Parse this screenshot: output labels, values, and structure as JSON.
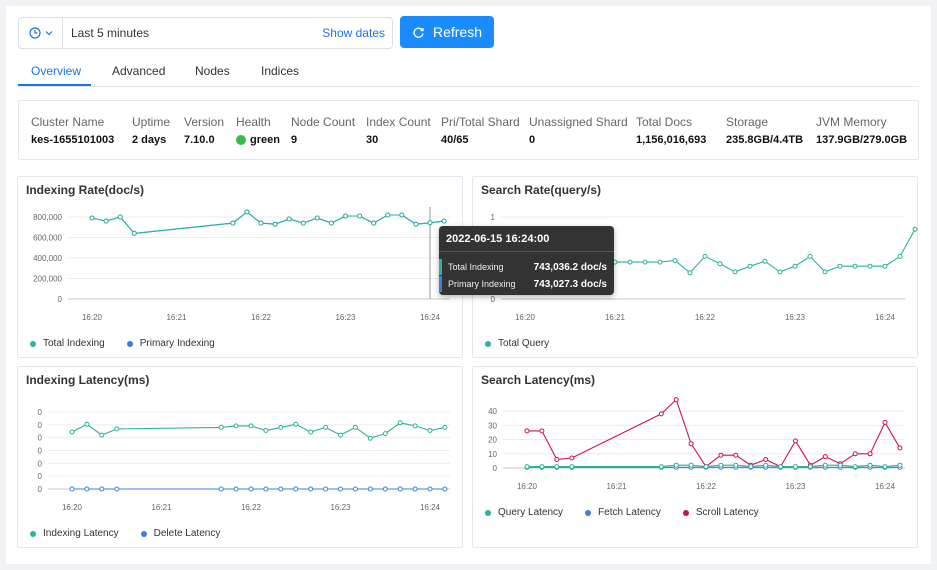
{
  "toolbar": {
    "range_label": "Last 5 minutes",
    "show_dates_label": "Show dates",
    "refresh_label": "Refresh"
  },
  "tabs": [
    {
      "label": "Overview",
      "active": true
    },
    {
      "label": "Advanced",
      "active": false
    },
    {
      "label": "Nodes",
      "active": false
    },
    {
      "label": "Indices",
      "active": false
    }
  ],
  "summary": [
    {
      "label": "Cluster Name",
      "value": "kes-1655101003"
    },
    {
      "label": "Uptime",
      "value": "2 days"
    },
    {
      "label": "Version",
      "value": "7.10.0"
    },
    {
      "label": "Health",
      "value": "green"
    },
    {
      "label": "Node Count",
      "value": "9"
    },
    {
      "label": "Index Count",
      "value": "30"
    },
    {
      "label": "Pri/Total Shard",
      "value": "40/65"
    },
    {
      "label": "Unassigned Shard",
      "value": "0"
    },
    {
      "label": "Total Docs",
      "value": "1,156,016,693"
    },
    {
      "label": "Storage",
      "value": "235.8GB/4.4TB"
    },
    {
      "label": "JVM Memory",
      "value": "137.9GB/279.0GB"
    }
  ],
  "colors": {
    "accent": "#1a73e8",
    "teal": "#2bb39b",
    "blue": "#3d7fe0",
    "crimson": "#d1105a",
    "health": "#3cba4b"
  },
  "tooltip": {
    "title": "2022-06-15 16:24:00",
    "rows": [
      {
        "name": "Total Indexing",
        "value": "743,036.2 doc/s",
        "color": "#2bb39b"
      },
      {
        "name": "Primary Indexing",
        "value": "743,027.3 doc/s",
        "color": "#3d7fe0"
      }
    ]
  },
  "chart_data": [
    {
      "id": "indexing-rate",
      "type": "line",
      "title": "Indexing Rate(doc/s)",
      "x": [
        "16:20:00",
        "16:20:10",
        "16:20:20",
        "16:20:30",
        "16:21:40",
        "16:21:50",
        "16:22:00",
        "16:22:10",
        "16:22:20",
        "16:22:30",
        "16:22:40",
        "16:22:50",
        "16:23:00",
        "16:23:10",
        "16:23:20",
        "16:23:30",
        "16:23:40",
        "16:23:50",
        "16:24:00",
        "16:24:10"
      ],
      "xticks": [
        "16:20",
        "16:21",
        "16:22",
        "16:23",
        "16:24"
      ],
      "yticks": [
        "800,000",
        "600,000",
        "400,000",
        "200,000",
        "0"
      ],
      "ylim": [
        0,
        800000
      ],
      "series": [
        {
          "name": "Total Indexing",
          "color": "#2bb39b",
          "values": [
            790000,
            760000,
            800000,
            640000,
            740000,
            850000,
            740000,
            730000,
            780000,
            740000,
            790000,
            740000,
            810000,
            810000,
            740000,
            820000,
            820000,
            730000,
            743036,
            760000
          ]
        },
        {
          "name": "Primary Indexing",
          "color": "#3d7fe0",
          "values": [
            790000,
            760000,
            800000,
            640000,
            740000,
            850000,
            740000,
            730000,
            780000,
            740000,
            790000,
            740000,
            810000,
            810000,
            740000,
            820000,
            820000,
            730000,
            743027,
            760000
          ]
        }
      ],
      "legend": [
        "Total Indexing",
        "Primary Indexing"
      ]
    },
    {
      "id": "search-rate",
      "type": "line",
      "title": "Search Rate(query/s)",
      "x": [
        "16:20:00",
        "16:20:10",
        "16:20:20",
        "16:20:30",
        "16:20:40",
        "16:20:50",
        "16:21:00",
        "16:21:10",
        "16:21:20",
        "16:21:30",
        "16:21:40",
        "16:21:50",
        "16:22:00",
        "16:22:10",
        "16:22:20",
        "16:22:30",
        "16:22:40",
        "16:22:50",
        "16:23:00",
        "16:23:10",
        "16:23:20",
        "16:23:30",
        "16:23:40",
        "16:23:50",
        "16:24:00",
        "16:24:10",
        "16:24:20"
      ],
      "xticks": [
        "16:20",
        "16:21",
        "16:22",
        "16:23",
        "16:24"
      ],
      "yticks": [
        "1",
        "0"
      ],
      "ylim": [
        0,
        1
      ],
      "series": [
        {
          "name": "Total Query",
          "color": "#2bb39b",
          "values": [
            0.45,
            0.45,
            0.45,
            0.45,
            0.45,
            0.45,
            0.45,
            0.45,
            0.45,
            0.45,
            0.47,
            0.32,
            0.52,
            0.43,
            0.33,
            0.4,
            0.46,
            0.33,
            0.4,
            0.52,
            0.33,
            0.4,
            0.4,
            0.4,
            0.4,
            0.52,
            0.85
          ]
        }
      ],
      "legend": [
        "Total Query"
      ]
    },
    {
      "id": "indexing-latency",
      "type": "line",
      "title": "Indexing Latency(ms)",
      "x": [
        "16:20:00",
        "16:20:10",
        "16:20:20",
        "16:20:30",
        "16:21:40",
        "16:21:50",
        "16:22:00",
        "16:22:10",
        "16:22:20",
        "16:22:30",
        "16:22:40",
        "16:22:50",
        "16:23:00",
        "16:23:10",
        "16:23:20",
        "16:23:30",
        "16:23:40",
        "16:23:50",
        "16:24:00",
        "16:24:10"
      ],
      "xticks": [
        "16:20",
        "16:21",
        "16:22",
        "16:23",
        "16:24"
      ],
      "yticks": [
        "0",
        "0",
        "0",
        "0",
        "0",
        "0",
        "0"
      ],
      "series": [
        {
          "name": "Indexing Latency",
          "color": "#2bb39b",
          "values": [
            0.74,
            0.84,
            0.7,
            0.78,
            0.8,
            0.82,
            0.82,
            0.76,
            0.8,
            0.84,
            0.74,
            0.8,
            0.7,
            0.8,
            0.66,
            0.72,
            0.86,
            0.82,
            0.76,
            0.8
          ]
        },
        {
          "name": "Delete Latency",
          "color": "#3d7fe0",
          "values": [
            0,
            0,
            0,
            0,
            0,
            0,
            0,
            0,
            0,
            0,
            0,
            0,
            0,
            0,
            0,
            0,
            0,
            0,
            0,
            0
          ]
        }
      ],
      "legend": [
        "Indexing Latency",
        "Delete Latency"
      ]
    },
    {
      "id": "search-latency",
      "type": "line",
      "title": "Search Latency(ms)",
      "x": [
        "16:20:00",
        "16:20:10",
        "16:20:20",
        "16:20:30",
        "16:21:30",
        "16:21:40",
        "16:21:50",
        "16:22:00",
        "16:22:10",
        "16:22:20",
        "16:22:30",
        "16:22:40",
        "16:22:50",
        "16:23:00",
        "16:23:10",
        "16:23:20",
        "16:23:30",
        "16:23:40",
        "16:23:50",
        "16:24:00",
        "16:24:10"
      ],
      "xticks": [
        "16:20",
        "16:21",
        "16:22",
        "16:23",
        "16:24"
      ],
      "yticks": [
        "40",
        "30",
        "20",
        "10",
        "0"
      ],
      "ylim": [
        0,
        40
      ],
      "series": [
        {
          "name": "Query Latency",
          "color": "#2bb39b",
          "values": [
            1,
            1,
            1,
            1,
            1,
            2,
            2,
            1,
            2,
            2,
            1,
            2,
            1,
            1,
            1,
            2,
            2,
            1,
            2,
            1,
            2
          ]
        },
        {
          "name": "Fetch Latency",
          "color": "#3d7fe0",
          "values": [
            0.5,
            0.5,
            0.5,
            0.5,
            0.5,
            0.5,
            0.5,
            0.5,
            0.5,
            0.5,
            0.5,
            0.5,
            0.5,
            0.5,
            0.5,
            0.5,
            0.5,
            0.5,
            0.5,
            0.5,
            0.5
          ]
        },
        {
          "name": "Scroll Latency",
          "color": "#d1105a",
          "values": [
            26,
            26,
            6,
            7,
            38,
            48,
            17,
            1,
            9,
            9,
            2,
            6,
            1,
            19,
            2,
            8,
            3,
            10,
            10,
            32,
            14
          ]
        }
      ],
      "legend": [
        "Query Latency",
        "Fetch Latency",
        "Scroll Latency"
      ]
    }
  ]
}
